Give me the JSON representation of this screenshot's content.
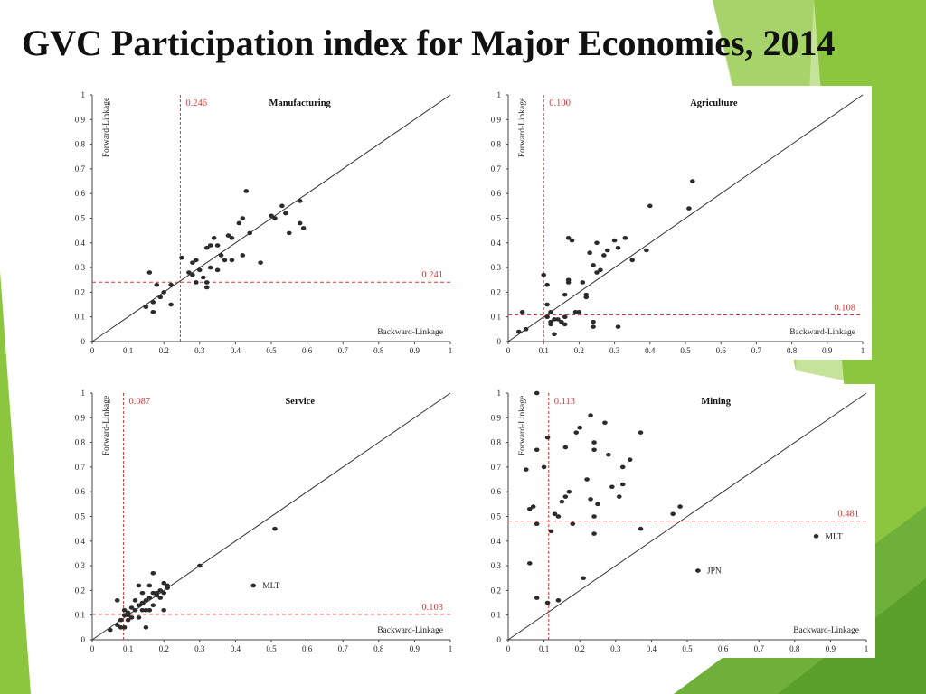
{
  "slide": {
    "title": "GVC Participation index for Major Economies, 2014"
  },
  "colors": {
    "accent_green": "#8cc63f",
    "ref_line": "#d43a3a",
    "point": "#2b2b2b"
  },
  "chart_data": [
    {
      "type": "scatter",
      "title": "Manufacturing",
      "xlabel": "Backward-Linkage",
      "ylabel": "Forward-Linkage",
      "xlim": [
        0,
        1
      ],
      "ylim": [
        0,
        1
      ],
      "ticks": [
        "0",
        "0.1",
        "0.2",
        "0.3",
        "0.4",
        "0.5",
        "0.6",
        "0.7",
        "0.8",
        "0.9",
        "1"
      ],
      "tick_values": [
        0,
        0.1,
        0.2,
        0.3,
        0.4,
        0.5,
        0.6,
        0.7,
        0.8,
        0.9,
        1
      ],
      "diagonal": true,
      "vline": {
        "value": 0.246,
        "label": "0.246"
      },
      "hline": {
        "value": 0.241,
        "label": "0.241"
      },
      "points": [
        [
          0.15,
          0.14
        ],
        [
          0.16,
          0.28
        ],
        [
          0.17,
          0.12
        ],
        [
          0.17,
          0.16
        ],
        [
          0.18,
          0.23
        ],
        [
          0.19,
          0.18
        ],
        [
          0.2,
          0.2
        ],
        [
          0.22,
          0.15
        ],
        [
          0.22,
          0.23
        ],
        [
          0.25,
          0.34
        ],
        [
          0.27,
          0.28
        ],
        [
          0.28,
          0.32
        ],
        [
          0.28,
          0.27
        ],
        [
          0.29,
          0.33
        ],
        [
          0.29,
          0.24
        ],
        [
          0.3,
          0.29
        ],
        [
          0.31,
          0.26
        ],
        [
          0.32,
          0.22
        ],
        [
          0.32,
          0.24
        ],
        [
          0.32,
          0.38
        ],
        [
          0.33,
          0.39
        ],
        [
          0.33,
          0.3
        ],
        [
          0.34,
          0.42
        ],
        [
          0.35,
          0.39
        ],
        [
          0.35,
          0.29
        ],
        [
          0.36,
          0.35
        ],
        [
          0.37,
          0.33
        ],
        [
          0.38,
          0.43
        ],
        [
          0.39,
          0.42
        ],
        [
          0.39,
          0.33
        ],
        [
          0.41,
          0.48
        ],
        [
          0.42,
          0.5
        ],
        [
          0.42,
          0.35
        ],
        [
          0.43,
          0.61
        ],
        [
          0.44,
          0.44
        ],
        [
          0.47,
          0.32
        ],
        [
          0.5,
          0.51
        ],
        [
          0.51,
          0.5
        ],
        [
          0.53,
          0.55
        ],
        [
          0.54,
          0.52
        ],
        [
          0.55,
          0.44
        ],
        [
          0.58,
          0.57
        ],
        [
          0.58,
          0.48
        ],
        [
          0.59,
          0.46
        ]
      ],
      "annotations": []
    },
    {
      "type": "scatter",
      "title": "Agriculture",
      "xlabel": "Backward-Linkage",
      "ylabel": "Forward-Linkage",
      "xlim": [
        0,
        1
      ],
      "ylim": [
        0,
        1
      ],
      "ticks": [
        "0",
        "0.1",
        "0.2",
        "0.3",
        "0.4",
        "0.5",
        "0.6",
        "0.7",
        "0.8",
        "0.9",
        "1"
      ],
      "tick_values": [
        0,
        0.1,
        0.2,
        0.3,
        0.4,
        0.5,
        0.6,
        0.7,
        0.8,
        0.9,
        1
      ],
      "diagonal": true,
      "vline": {
        "value": 0.1,
        "label": "0.100"
      },
      "hline": {
        "value": 0.108,
        "label": "0.108"
      },
      "points": [
        [
          0.03,
          0.04
        ],
        [
          0.04,
          0.12
        ],
        [
          0.05,
          0.05
        ],
        [
          0.1,
          0.27
        ],
        [
          0.11,
          0.15
        ],
        [
          0.11,
          0.23
        ],
        [
          0.11,
          0.1
        ],
        [
          0.12,
          0.08
        ],
        [
          0.12,
          0.07
        ],
        [
          0.12,
          0.12
        ],
        [
          0.13,
          0.03
        ],
        [
          0.13,
          0.09
        ],
        [
          0.14,
          0.09
        ],
        [
          0.15,
          0.08
        ],
        [
          0.16,
          0.07
        ],
        [
          0.16,
          0.1
        ],
        [
          0.16,
          0.19
        ],
        [
          0.17,
          0.24
        ],
        [
          0.17,
          0.25
        ],
        [
          0.17,
          0.42
        ],
        [
          0.18,
          0.41
        ],
        [
          0.19,
          0.12
        ],
        [
          0.2,
          0.12
        ],
        [
          0.21,
          0.24
        ],
        [
          0.22,
          0.18
        ],
        [
          0.22,
          0.19
        ],
        [
          0.23,
          0.36
        ],
        [
          0.24,
          0.06
        ],
        [
          0.24,
          0.08
        ],
        [
          0.24,
          0.31
        ],
        [
          0.25,
          0.4
        ],
        [
          0.25,
          0.28
        ],
        [
          0.26,
          0.29
        ],
        [
          0.27,
          0.35
        ],
        [
          0.28,
          0.37
        ],
        [
          0.3,
          0.41
        ],
        [
          0.31,
          0.06
        ],
        [
          0.31,
          0.38
        ],
        [
          0.33,
          0.42
        ],
        [
          0.35,
          0.33
        ],
        [
          0.39,
          0.37
        ],
        [
          0.4,
          0.55
        ],
        [
          0.51,
          0.54
        ],
        [
          0.52,
          0.65
        ]
      ],
      "annotations": []
    },
    {
      "type": "scatter",
      "title": "Service",
      "xlabel": "Backward-Linkage",
      "ylabel": "Forward-Linkage",
      "xlim": [
        0,
        1
      ],
      "ylim": [
        0,
        1
      ],
      "ticks": [
        "0",
        "0.1",
        "0.2",
        "0.3",
        "0.4",
        "0.5",
        "0.6",
        "0.7",
        "0.8",
        "0.9",
        "1"
      ],
      "tick_values": [
        0,
        0.1,
        0.2,
        0.3,
        0.4,
        0.5,
        0.6,
        0.7,
        0.8,
        0.9,
        1
      ],
      "diagonal": true,
      "vline": {
        "value": 0.087,
        "label": "0.087"
      },
      "hline": {
        "value": 0.103,
        "label": "0.103"
      },
      "points": [
        [
          0.05,
          0.04
        ],
        [
          0.07,
          0.16
        ],
        [
          0.07,
          0.06
        ],
        [
          0.08,
          0.05
        ],
        [
          0.08,
          0.08
        ],
        [
          0.09,
          0.12
        ],
        [
          0.09,
          0.1
        ],
        [
          0.09,
          0.05
        ],
        [
          0.1,
          0.11
        ],
        [
          0.1,
          0.08
        ],
        [
          0.1,
          0.1
        ],
        [
          0.11,
          0.09
        ],
        [
          0.11,
          0.13
        ],
        [
          0.12,
          0.16
        ],
        [
          0.12,
          0.12
        ],
        [
          0.13,
          0.14
        ],
        [
          0.13,
          0.09
        ],
        [
          0.13,
          0.22
        ],
        [
          0.14,
          0.19
        ],
        [
          0.14,
          0.12
        ],
        [
          0.14,
          0.15
        ],
        [
          0.15,
          0.16
        ],
        [
          0.15,
          0.05
        ],
        [
          0.15,
          0.12
        ],
        [
          0.16,
          0.17
        ],
        [
          0.16,
          0.22
        ],
        [
          0.16,
          0.12
        ],
        [
          0.17,
          0.27
        ],
        [
          0.17,
          0.19
        ],
        [
          0.17,
          0.14
        ],
        [
          0.18,
          0.18
        ],
        [
          0.18,
          0.19
        ],
        [
          0.19,
          0.17
        ],
        [
          0.19,
          0.2
        ],
        [
          0.2,
          0.23
        ],
        [
          0.2,
          0.12
        ],
        [
          0.2,
          0.19
        ],
        [
          0.21,
          0.21
        ],
        [
          0.21,
          0.22
        ],
        [
          0.3,
          0.3
        ],
        [
          0.45,
          0.22
        ],
        [
          0.51,
          0.45
        ]
      ],
      "annotations": [
        {
          "x": 0.45,
          "y": 0.22,
          "label": "MLT"
        }
      ]
    },
    {
      "type": "scatter",
      "title": "Mining",
      "xlabel": "Backward-Linkage",
      "ylabel": "Forward-Linkage",
      "xlim": [
        0,
        1
      ],
      "ylim": [
        0,
        1
      ],
      "ticks": [
        "0",
        "0.1",
        "0.2",
        "0.3",
        "0.4",
        "0.5",
        "0.6",
        "0.7",
        "0.8",
        "0.9",
        "1"
      ],
      "tick_values": [
        0,
        0.1,
        0.2,
        0.3,
        0.4,
        0.5,
        0.6,
        0.7,
        0.8,
        0.9,
        1
      ],
      "diagonal": true,
      "vline": {
        "value": 0.113,
        "label": "0.113"
      },
      "hline": {
        "value": 0.481,
        "label": "0.481"
      },
      "points": [
        [
          0.05,
          0.69
        ],
        [
          0.06,
          0.53
        ],
        [
          0.06,
          0.31
        ],
        [
          0.07,
          0.54
        ],
        [
          0.08,
          0.77
        ],
        [
          0.08,
          1.0
        ],
        [
          0.08,
          0.17
        ],
        [
          0.08,
          0.47
        ],
        [
          0.1,
          0.7
        ],
        [
          0.11,
          0.82
        ],
        [
          0.11,
          0.15
        ],
        [
          0.12,
          0.44
        ],
        [
          0.13,
          0.51
        ],
        [
          0.14,
          0.16
        ],
        [
          0.14,
          0.5
        ],
        [
          0.15,
          0.56
        ],
        [
          0.16,
          0.58
        ],
        [
          0.16,
          0.78
        ],
        [
          0.17,
          0.6
        ],
        [
          0.18,
          0.47
        ],
        [
          0.19,
          0.84
        ],
        [
          0.2,
          0.86
        ],
        [
          0.21,
          0.25
        ],
        [
          0.22,
          0.65
        ],
        [
          0.23,
          0.91
        ],
        [
          0.23,
          0.57
        ],
        [
          0.24,
          0.8
        ],
        [
          0.24,
          0.5
        ],
        [
          0.24,
          0.43
        ],
        [
          0.24,
          0.77
        ],
        [
          0.25,
          0.55
        ],
        [
          0.27,
          0.88
        ],
        [
          0.28,
          0.75
        ],
        [
          0.29,
          0.62
        ],
        [
          0.31,
          0.58
        ],
        [
          0.32,
          0.63
        ],
        [
          0.32,
          0.7
        ],
        [
          0.34,
          0.73
        ],
        [
          0.37,
          0.84
        ],
        [
          0.37,
          0.45
        ],
        [
          0.46,
          0.51
        ],
        [
          0.48,
          0.54
        ],
        [
          0.53,
          0.28
        ],
        [
          0.86,
          0.42
        ]
      ],
      "annotations": [
        {
          "x": 0.86,
          "y": 0.42,
          "label": "MLT"
        },
        {
          "x": 0.53,
          "y": 0.28,
          "label": "JPN"
        }
      ]
    }
  ]
}
